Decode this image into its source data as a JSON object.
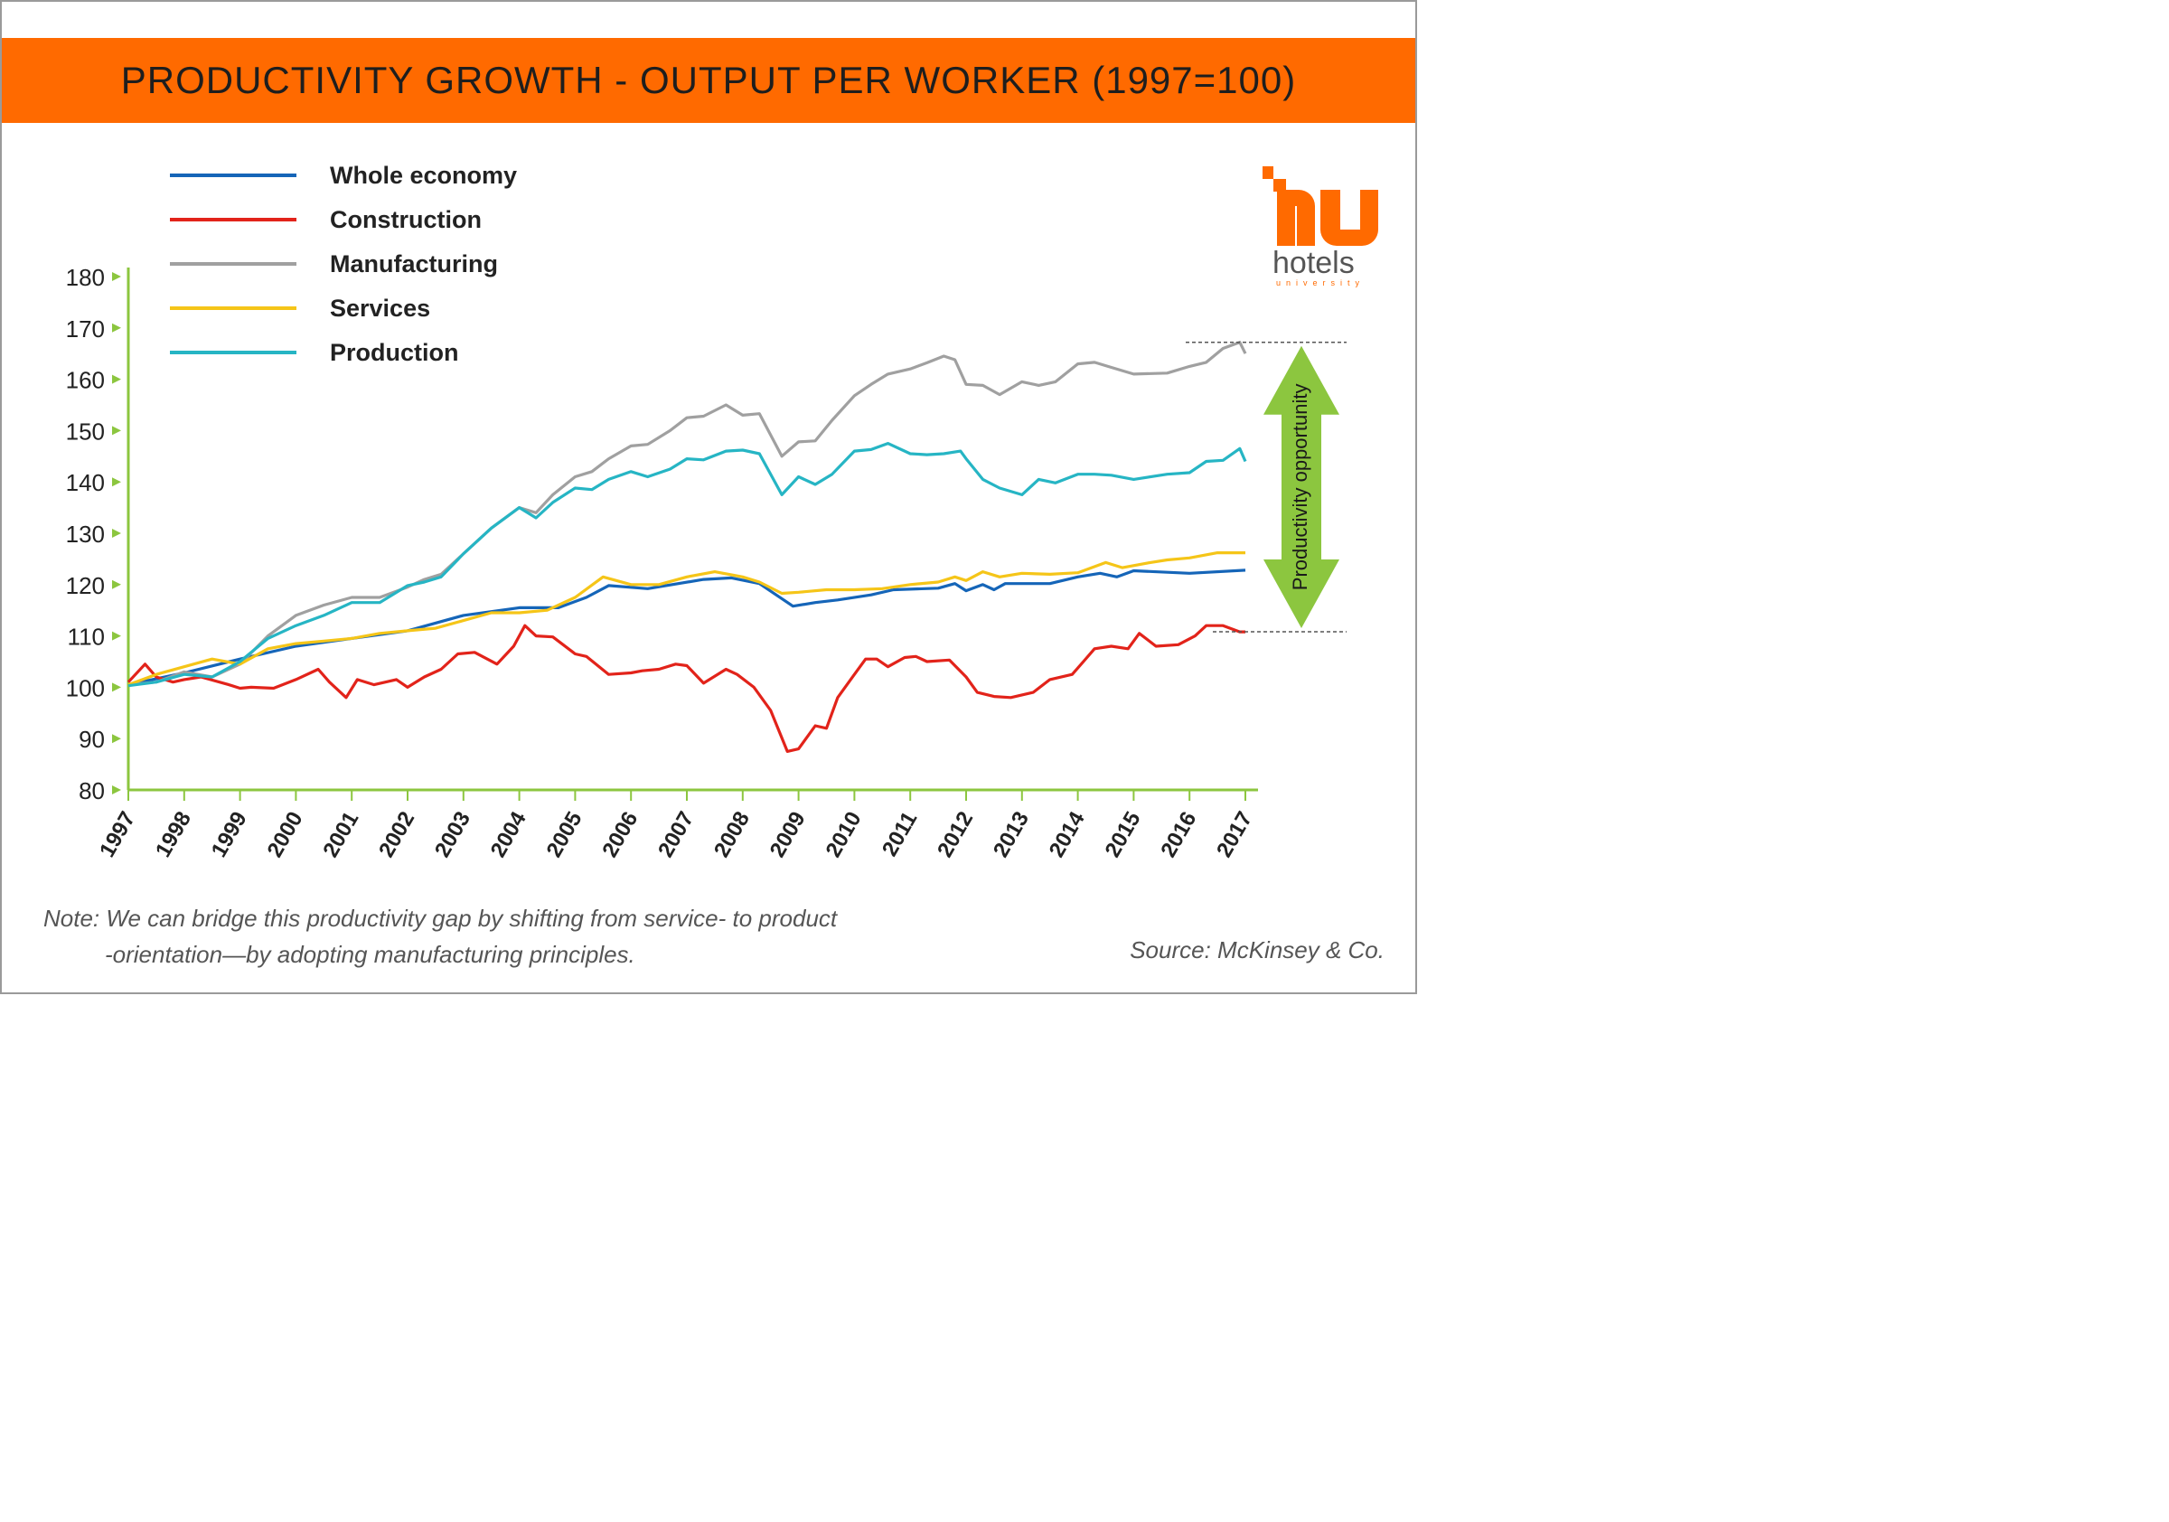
{
  "header": {
    "title": "PRODUCTIVITY GROWTH - OUTPUT PER WORKER (1997=100)"
  },
  "brand": {
    "name": "hotels",
    "sub": "university",
    "color": "#ff6a00"
  },
  "note": {
    "line1": "Note: We can bridge this productivity gap by shifting from service- to product",
    "line2": "-orientation—by adopting manufacturing principles."
  },
  "source": "Source: McKinsey & Co.",
  "annotation": {
    "label": "Productivity opportunity",
    "color": "#8cc63f"
  },
  "colors": {
    "axis": "#8cc63f",
    "text": "#222222"
  },
  "chart_data": {
    "type": "line",
    "title": "PRODUCTIVITY GROWTH - OUTPUT PER WORKER (1997=100)",
    "xlabel": "",
    "ylabel": "",
    "xlim": [
      1997,
      2017
    ],
    "ylim": [
      80,
      180
    ],
    "x_ticks": [
      "1997",
      "1998",
      "1999",
      "2000",
      "2001",
      "2002",
      "2003",
      "2004",
      "2005",
      "2006",
      "2007",
      "2008",
      "2009",
      "2010",
      "2011",
      "2012",
      "2013",
      "2014",
      "2015",
      "2016",
      "2017"
    ],
    "y_ticks": [
      80,
      90,
      100,
      110,
      120,
      130,
      140,
      150,
      160,
      170,
      180
    ],
    "grid": false,
    "legend_position": "top-left",
    "series": [
      {
        "name": "Whole economy",
        "color": "#1565b8",
        "x": [
          1997,
          1998,
          1999,
          2000,
          2001,
          2002,
          2003,
          2004,
          2004.7,
          2005.2,
          2005.6,
          2006.3,
          2007.3,
          2007.8,
          2008.3,
          2008.9,
          2009.3,
          2009.7,
          2010.3,
          2010.7,
          2011.5,
          2011.8,
          2012.0,
          2012.3,
          2012.5,
          2012.7,
          2013.5,
          2014.0,
          2014.4,
          2014.7,
          2015.0,
          2016.0,
          2017.0
        ],
        "y": [
          100.5,
          102.8,
          105.5,
          108,
          109.5,
          111,
          114,
          115.5,
          115.5,
          117.5,
          119.8,
          119.2,
          121,
          121.3,
          120.2,
          115.8,
          116.5,
          117,
          118,
          119,
          119.3,
          120.2,
          118.8,
          120,
          119,
          120.2,
          120.2,
          121.5,
          122.2,
          121.5,
          122.7,
          122.2,
          122.8
        ]
      },
      {
        "name": "Construction",
        "color": "#e2231a",
        "x": [
          1997,
          1997.3,
          1997.5,
          1997.8,
          1998,
          1998.3,
          1998.8,
          1999,
          1999.2,
          1999.6,
          2000,
          2000.4,
          2000.6,
          2000.9,
          2001.1,
          2001.4,
          2001.8,
          2002,
          2002.3,
          2002.6,
          2002.9,
          2003.2,
          2003.6,
          2003.9,
          2004.1,
          2004.3,
          2004.6,
          2005,
          2005.2,
          2005.6,
          2006,
          2006.2,
          2006.5,
          2006.8,
          2007,
          2007.3,
          2007.7,
          2007.9,
          2008.2,
          2008.5,
          2008.8,
          2009,
          2009.3,
          2009.5,
          2009.7,
          2010,
          2010.2,
          2010.4,
          2010.6,
          2010.9,
          2011.1,
          2011.3,
          2011.7,
          2012,
          2012.2,
          2012.5,
          2012.8,
          2013.2,
          2013.5,
          2013.9,
          2014.1,
          2014.3,
          2014.6,
          2014.9,
          2015.1,
          2015.4,
          2015.8,
          2016.1,
          2016.3,
          2016.6,
          2016.9,
          2017
        ],
        "y": [
          101,
          104.5,
          102,
          101,
          101.5,
          102,
          100.5,
          99.8,
          100,
          99.8,
          101.5,
          103.5,
          101,
          98,
          101.5,
          100.5,
          101.5,
          100,
          102,
          103.5,
          106.5,
          106.8,
          104.5,
          108,
          112,
          110,
          109.8,
          106.5,
          106,
          102.5,
          102.8,
          103.2,
          103.5,
          104.5,
          104.2,
          100.8,
          103.5,
          102.5,
          100,
          95.5,
          87.5,
          88,
          92.5,
          92,
          98,
          102.5,
          105.5,
          105.5,
          104,
          105.8,
          106,
          105,
          105.3,
          102,
          99,
          98.2,
          98,
          99,
          101.5,
          102.5,
          105,
          107.5,
          108,
          107.5,
          110.5,
          108,
          108.3,
          110,
          112,
          112,
          110.8,
          110.8
        ]
      },
      {
        "name": "Manufacturing",
        "color": "#a0a0a0",
        "x": [
          1997,
          1997.5,
          1998,
          1998.5,
          1999,
          1999.5,
          2000,
          2000.5,
          2001,
          2001.5,
          2002,
          2002.3,
          2002.6,
          2003,
          2003.5,
          2004,
          2004.3,
          2004.6,
          2005,
          2005.3,
          2005.6,
          2006,
          2006.3,
          2006.7,
          2007,
          2007.3,
          2007.7,
          2008,
          2008.3,
          2008.7,
          2009,
          2009.3,
          2009.6,
          2010,
          2010.3,
          2010.6,
          2011,
          2011.3,
          2011.6,
          2011.8,
          2012,
          2012.3,
          2012.6,
          2013,
          2013.3,
          2013.6,
          2014,
          2014.3,
          2014.6,
          2015,
          2015.6,
          2016,
          2016.3,
          2016.6,
          2016.9,
          2017
        ],
        "y": [
          100.5,
          101,
          103,
          102,
          104.5,
          110,
          114,
          116,
          117.5,
          117.5,
          119.5,
          121,
          122,
          126,
          131,
          135,
          134,
          137.5,
          141,
          142,
          144.5,
          147,
          147.3,
          150,
          152.5,
          152.8,
          155,
          153,
          153.3,
          145,
          147.8,
          148,
          152,
          156.8,
          159,
          161,
          162,
          163.2,
          164.5,
          163.8,
          159,
          158.8,
          157,
          159.5,
          158.8,
          159.5,
          163,
          163.3,
          162.3,
          161,
          161.2,
          162.5,
          163.3,
          166,
          167.2,
          165
        ]
      },
      {
        "name": "Services",
        "color": "#f5c518",
        "x": [
          1997,
          1997.5,
          1998,
          1998.5,
          1999,
          1999.5,
          2000,
          2000.5,
          2001,
          2001.5,
          2002,
          2002.5,
          2003,
          2003.5,
          2004,
          2004.5,
          2005,
          2005.5,
          2006,
          2006.5,
          2007,
          2007.5,
          2008,
          2008.3,
          2008.7,
          2009,
          2009.5,
          2010,
          2010.5,
          2011,
          2011.5,
          2011.8,
          2012,
          2012.3,
          2012.6,
          2013,
          2013.5,
          2014,
          2014.5,
          2014.8,
          2015.3,
          2015.6,
          2016,
          2016.5,
          2017
        ],
        "y": [
          100.5,
          102.5,
          104,
          105.5,
          104.5,
          107.5,
          108.5,
          109,
          109.5,
          110.5,
          111,
          111.5,
          113,
          114.5,
          114.5,
          115,
          117.5,
          121.5,
          120,
          120,
          121.5,
          122.5,
          121.5,
          120.5,
          118.3,
          118.5,
          119,
          119,
          119.2,
          120,
          120.5,
          121.5,
          120.8,
          122.5,
          121.5,
          122.2,
          122,
          122.3,
          124.3,
          123.3,
          124.3,
          124.8,
          125.2,
          126.2,
          126.2
        ]
      },
      {
        "name": "Production",
        "color": "#26b5c4",
        "x": [
          1997,
          1997.5,
          1998,
          1998.5,
          1999,
          1999.5,
          2000,
          2000.5,
          2001,
          2001.5,
          2002,
          2002.3,
          2002.6,
          2003,
          2003.5,
          2004,
          2004.3,
          2004.6,
          2005,
          2005.3,
          2005.6,
          2006,
          2006.3,
          2006.7,
          2007,
          2007.3,
          2007.7,
          2008,
          2008.3,
          2008.7,
          2009,
          2009.3,
          2009.6,
          2010,
          2010.3,
          2010.6,
          2011,
          2011.3,
          2011.6,
          2011.9,
          2012,
          2012.3,
          2012.6,
          2013,
          2013.3,
          2013.6,
          2014,
          2014.3,
          2014.6,
          2015,
          2015.6,
          2016,
          2016.3,
          2016.6,
          2016.9,
          2017
        ],
        "y": [
          100.3,
          101,
          102.5,
          102,
          105,
          109.5,
          112,
          114,
          116.5,
          116.5,
          119.8,
          120.5,
          121.5,
          126,
          131,
          135,
          133,
          136,
          138.8,
          138.5,
          140.5,
          142,
          141,
          142.5,
          144.5,
          144.3,
          146,
          146.2,
          145.5,
          137.5,
          141,
          139.5,
          141.5,
          146,
          146.3,
          147.5,
          145.5,
          145.3,
          145.5,
          146,
          144.5,
          140.5,
          138.8,
          137.5,
          140.5,
          139.8,
          141.5,
          141.5,
          141.3,
          140.5,
          141.5,
          141.8,
          144,
          144.2,
          146.5,
          144
        ]
      }
    ]
  }
}
